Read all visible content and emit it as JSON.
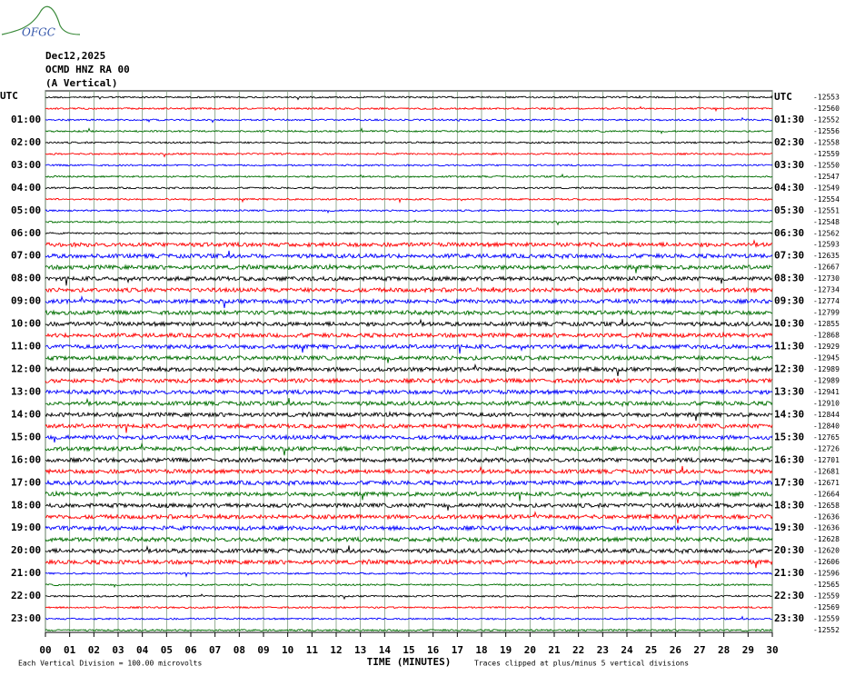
{
  "chart_data": {
    "type": "helicorder",
    "logo": "OFGC",
    "date": "Dec12,2025",
    "station": "OCMD HNZ RA 00",
    "component": "(A Vertical)",
    "left_labels": [
      "UTC",
      "01:00",
      "02:00",
      "03:00",
      "04:00",
      "05:00",
      "06:00",
      "07:00",
      "08:00",
      "09:00",
      "10:00",
      "11:00",
      "12:00",
      "13:00",
      "14:00",
      "15:00",
      "16:00",
      "17:00",
      "18:00",
      "19:00",
      "20:00",
      "21:00",
      "22:00",
      "23:00"
    ],
    "right_labels": [
      "UTC",
      "01:30",
      "02:30",
      "03:30",
      "04:30",
      "05:30",
      "06:30",
      "07:30",
      "08:30",
      "09:30",
      "10:30",
      "11:30",
      "12:30",
      "13:30",
      "14:30",
      "15:30",
      "16:30",
      "17:30",
      "18:30",
      "19:30",
      "20:30",
      "21:30",
      "22:30",
      "23:30"
    ],
    "offsets": [
      -12553,
      -12560,
      -12552,
      -12556,
      -12558,
      -12559,
      -12550,
      -12547,
      -12549,
      -12554,
      -12551,
      -12548,
      -12562,
      -12593,
      -12635,
      -12667,
      -12730,
      -12734,
      -12774,
      -12799,
      -12855,
      -12868,
      -12929,
      -12945,
      -12989,
      -12989,
      -12941,
      -12910,
      -12844,
      -12840,
      -12765,
      -12726,
      -12701,
      -12681,
      -12671,
      -12664,
      -12658,
      -12636,
      -12636,
      -12628,
      -12620,
      -12606,
      -12596,
      -12565,
      -12559,
      -12569,
      -12559,
      -12552
    ],
    "colors": [
      "#000000",
      "#ff0000",
      "#0000ff",
      "#006f00"
    ],
    "xlabel": "TIME (MINUTES)",
    "xlim": [
      0,
      30
    ],
    "xticks": [
      {
        "value": 0,
        "label": "00"
      },
      {
        "value": 1,
        "label": "01"
      },
      {
        "value": 2,
        "label": "02"
      },
      {
        "value": 3,
        "label": "03"
      },
      {
        "value": 4,
        "label": "04"
      },
      {
        "value": 5,
        "label": "05"
      },
      {
        "value": 6,
        "label": "06"
      },
      {
        "value": 7,
        "label": "07"
      },
      {
        "value": 8,
        "label": "08"
      },
      {
        "value": 9,
        "label": "09"
      },
      10,
      11,
      12,
      13,
      14,
      15,
      16,
      17,
      18,
      19,
      20,
      21,
      22,
      23,
      24,
      25,
      26,
      27,
      28,
      29,
      30
    ],
    "scale_note": "Each Vertical Division =  100.00 microvolts",
    "clip_note": "Traces clipped at plus/minus 5 vertical divisions",
    "grid": true
  }
}
